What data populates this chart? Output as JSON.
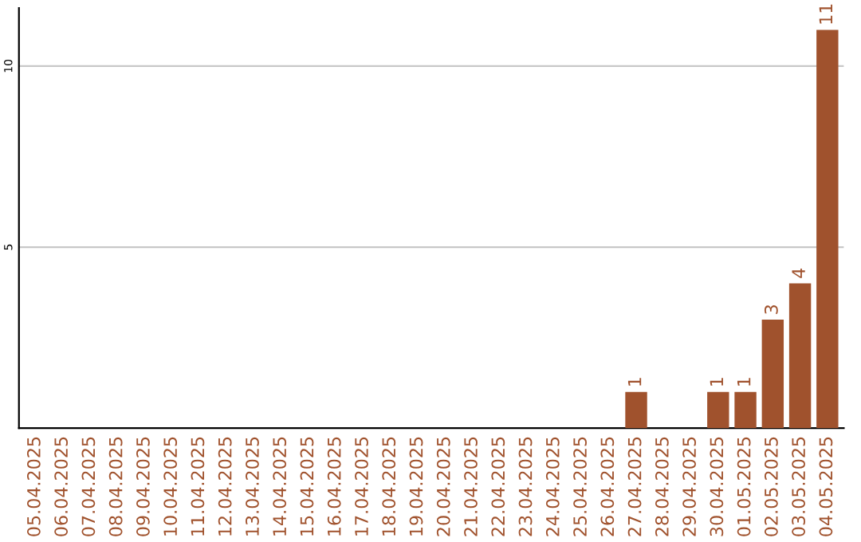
{
  "chart_data": {
    "type": "bar",
    "categories": [
      "05.04.2025",
      "06.04.2025",
      "07.04.2025",
      "08.04.2025",
      "09.04.2025",
      "10.04.2025",
      "11.04.2025",
      "12.04.2025",
      "13.04.2025",
      "14.04.2025",
      "15.04.2025",
      "16.04.2025",
      "17.04.2025",
      "18.04.2025",
      "19.04.2025",
      "20.04.2025",
      "21.04.2025",
      "22.04.2025",
      "23.04.2025",
      "24.04.2025",
      "25.04.2025",
      "26.04.2025",
      "27.04.2025",
      "28.04.2025",
      "29.04.2025",
      "30.04.2025",
      "01.05.2025",
      "02.05.2025",
      "03.05.2025",
      "04.05.2025"
    ],
    "values": [
      0,
      0,
      0,
      0,
      0,
      0,
      0,
      0,
      0,
      0,
      0,
      0,
      0,
      0,
      0,
      0,
      0,
      0,
      0,
      0,
      0,
      0,
      1,
      0,
      0,
      1,
      1,
      3,
      4,
      11
    ],
    "value_labels": [
      null,
      null,
      null,
      null,
      null,
      null,
      null,
      null,
      null,
      null,
      null,
      null,
      null,
      null,
      null,
      null,
      null,
      null,
      null,
      null,
      null,
      null,
      "1",
      null,
      null,
      "1",
      "1",
      "3",
      "4",
      "11"
    ],
    "color": "#a0522d",
    "ylim": [
      0,
      11.6
    ],
    "yticks": [
      5,
      10
    ],
    "grid": "y"
  }
}
